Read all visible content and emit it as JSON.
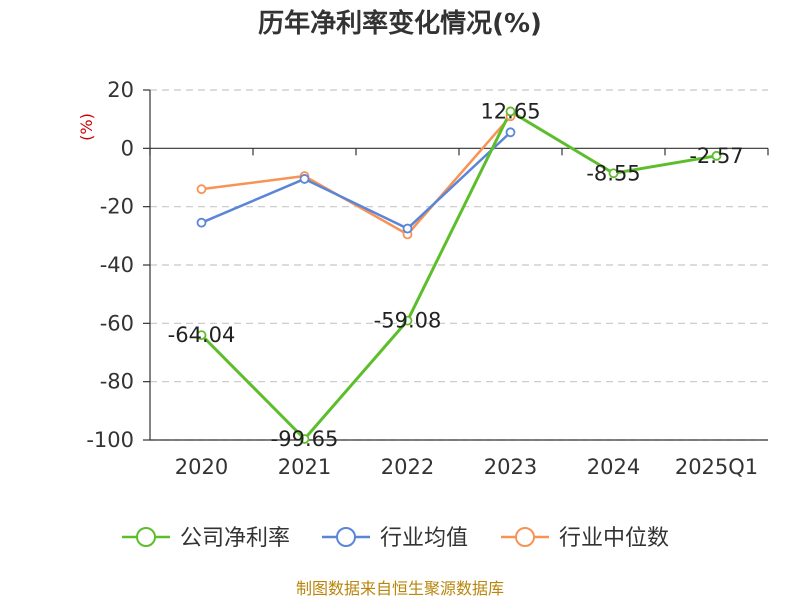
{
  "chart_data": {
    "type": "line",
    "title": "历年净利率变化情况(%)",
    "ylabel": "(%)",
    "categories": [
      "2020",
      "2021",
      "2022",
      "2023",
      "2024",
      "2025Q1"
    ],
    "ylim": [
      -100,
      20
    ],
    "yticks": [
      20,
      0,
      -20,
      -40,
      -60,
      -80,
      -100
    ],
    "grid": true,
    "legend_position": "bottom",
    "series": [
      {
        "name": "公司净利率",
        "color": "#5dbe2c",
        "values": [
          -64.04,
          -99.65,
          -59.08,
          12.65,
          -8.55,
          -2.57
        ],
        "labels": [
          "-64.04",
          "-99.65",
          "-59.08",
          "12.65",
          "-8.55",
          "-2.57"
        ]
      },
      {
        "name": "行业均值",
        "color": "#5b85d7",
        "values": [
          -25.5,
          -10.5,
          -27.5,
          5.5,
          null,
          null
        ]
      },
      {
        "name": "行业中位数",
        "color": "#f79355",
        "values": [
          -14,
          -9.5,
          -29.5,
          11,
          null,
          null
        ]
      }
    ]
  },
  "source": "制图数据来自恒生聚源数据库"
}
